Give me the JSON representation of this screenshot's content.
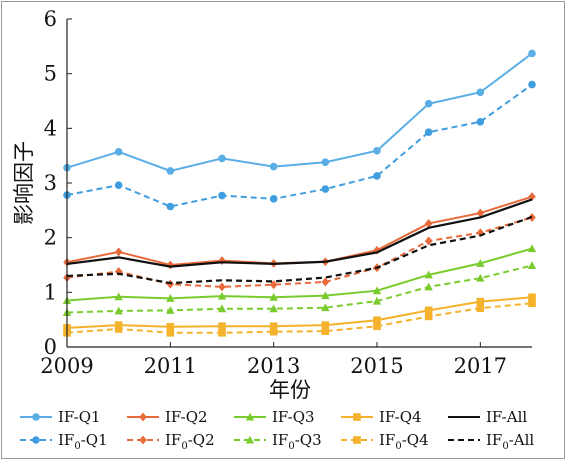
{
  "chart_data": {
    "type": "line",
    "title": "",
    "xlabel": "年份",
    "ylabel": "影响因子",
    "xlim": [
      2009,
      2018
    ],
    "ylim": [
      0,
      6
    ],
    "x_ticks": [
      "2009",
      "2011",
      "2013",
      "2015",
      "2017"
    ],
    "y_ticks": [
      "0",
      "1",
      "2",
      "3",
      "4",
      "5",
      "6"
    ],
    "grid": false,
    "legend_position": "bottom",
    "x": [
      2009,
      2010,
      2011,
      2012,
      2013,
      2014,
      2015,
      2016,
      2017,
      2018
    ],
    "series": [
      {
        "name": "IF-Q1",
        "legend_main": "IF",
        "legend_sub": "",
        "legend_suffix": "-Q1",
        "color": "#5aaee6",
        "dash": false,
        "marker": "circle",
        "values": [
          3.28,
          3.57,
          3.22,
          3.45,
          3.3,
          3.38,
          3.59,
          4.45,
          4.66,
          5.37
        ]
      },
      {
        "name": "IF-Q2",
        "legend_main": "IF",
        "legend_sub": "",
        "legend_suffix": "-Q2",
        "color": "#e8693a",
        "dash": false,
        "marker": "diamond",
        "values": [
          1.55,
          1.74,
          1.5,
          1.58,
          1.53,
          1.56,
          1.77,
          2.26,
          2.45,
          2.75
        ]
      },
      {
        "name": "IF-Q3",
        "legend_main": "IF",
        "legend_sub": "",
        "legend_suffix": "-Q3",
        "color": "#7acc2e",
        "dash": false,
        "marker": "triangle",
        "values": [
          0.85,
          0.92,
          0.89,
          0.93,
          0.91,
          0.94,
          1.03,
          1.32,
          1.53,
          1.8
        ]
      },
      {
        "name": "IF-Q4",
        "legend_main": "IF",
        "legend_sub": "",
        "legend_suffix": "-Q4",
        "color": "#f5b22c",
        "dash": false,
        "marker": "square",
        "values": [
          0.35,
          0.4,
          0.37,
          0.38,
          0.38,
          0.4,
          0.49,
          0.67,
          0.83,
          0.91
        ]
      },
      {
        "name": "IF-All",
        "legend_main": "IF",
        "legend_sub": "",
        "legend_suffix": "-All",
        "color": "#111111",
        "dash": false,
        "marker": "none",
        "values": [
          1.52,
          1.64,
          1.47,
          1.55,
          1.52,
          1.56,
          1.73,
          2.18,
          2.37,
          2.7
        ]
      },
      {
        "name": "IF0-Q1",
        "legend_main": "IF",
        "legend_sub": "0",
        "legend_suffix": "-Q1",
        "color": "#3f9ee0",
        "dash": true,
        "marker": "circle",
        "values": [
          2.78,
          2.96,
          2.57,
          2.77,
          2.71,
          2.89,
          3.13,
          3.93,
          4.12,
          4.8
        ]
      },
      {
        "name": "IF0-Q2",
        "legend_main": "IF",
        "legend_sub": "0",
        "legend_suffix": "-Q2",
        "color": "#e8693a",
        "dash": true,
        "marker": "diamond",
        "values": [
          1.27,
          1.38,
          1.15,
          1.1,
          1.14,
          1.19,
          1.45,
          1.94,
          2.09,
          2.37
        ]
      },
      {
        "name": "IF0-Q3",
        "legend_main": "IF",
        "legend_sub": "0",
        "legend_suffix": "-Q3",
        "color": "#7acc2e",
        "dash": true,
        "marker": "triangle",
        "values": [
          0.63,
          0.66,
          0.67,
          0.7,
          0.7,
          0.72,
          0.84,
          1.1,
          1.26,
          1.49
        ]
      },
      {
        "name": "IF0-Q4",
        "legend_main": "IF",
        "legend_sub": "0",
        "legend_suffix": "-Q4",
        "color": "#f5b22c",
        "dash": true,
        "marker": "square",
        "values": [
          0.26,
          0.33,
          0.26,
          0.26,
          0.28,
          0.29,
          0.38,
          0.56,
          0.71,
          0.8
        ]
      },
      {
        "name": "IF0-All",
        "legend_main": "IF",
        "legend_sub": "0",
        "legend_suffix": "-All",
        "color": "#111111",
        "dash": true,
        "marker": "none",
        "values": [
          1.3,
          1.34,
          1.17,
          1.22,
          1.2,
          1.27,
          1.45,
          1.86,
          2.04,
          2.38
        ]
      }
    ]
  }
}
